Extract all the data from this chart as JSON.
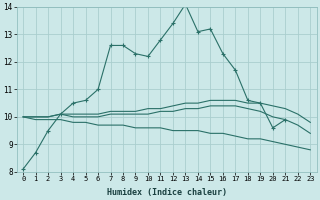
{
  "x": [
    0,
    1,
    2,
    3,
    4,
    5,
    6,
    7,
    8,
    9,
    10,
    11,
    12,
    13,
    14,
    15,
    16,
    17,
    18,
    19,
    20,
    21,
    22,
    23
  ],
  "line1": [
    8.1,
    8.7,
    9.5,
    10.1,
    10.5,
    10.6,
    11.0,
    12.6,
    12.6,
    12.3,
    12.2,
    12.8,
    13.4,
    14.1,
    13.1,
    13.2,
    12.3,
    11.7,
    10.6,
    10.5,
    9.6,
    9.9,
    null,
    null
  ],
  "line2": [
    10.0,
    10.0,
    10.0,
    10.1,
    10.1,
    10.1,
    10.1,
    10.2,
    10.2,
    10.2,
    10.3,
    10.3,
    10.4,
    10.5,
    10.5,
    10.6,
    10.6,
    10.6,
    10.5,
    10.5,
    10.4,
    10.3,
    10.1,
    9.8
  ],
  "line3": [
    10.0,
    10.0,
    10.0,
    10.1,
    10.0,
    10.0,
    10.0,
    10.1,
    10.1,
    10.1,
    10.1,
    10.2,
    10.2,
    10.3,
    10.3,
    10.4,
    10.4,
    10.4,
    10.3,
    10.2,
    10.0,
    9.9,
    9.7,
    9.4
  ],
  "line4": [
    10.0,
    9.9,
    9.9,
    9.9,
    9.8,
    9.8,
    9.7,
    9.7,
    9.7,
    9.6,
    9.6,
    9.6,
    9.5,
    9.5,
    9.5,
    9.4,
    9.4,
    9.3,
    9.2,
    9.2,
    9.1,
    9.0,
    8.9,
    8.8
  ],
  "bg_color": "#cce8e8",
  "grid_color": "#aacece",
  "line_color": "#2a7068",
  "ylim": [
    8,
    14
  ],
  "xlim": [
    -0.5,
    23.5
  ],
  "yticks": [
    8,
    9,
    10,
    11,
    12,
    13,
    14
  ],
  "xticks": [
    0,
    1,
    2,
    3,
    4,
    5,
    6,
    7,
    8,
    9,
    10,
    11,
    12,
    13,
    14,
    15,
    16,
    17,
    18,
    19,
    20,
    21,
    22,
    23
  ],
  "xlabel": "Humidex (Indice chaleur)"
}
